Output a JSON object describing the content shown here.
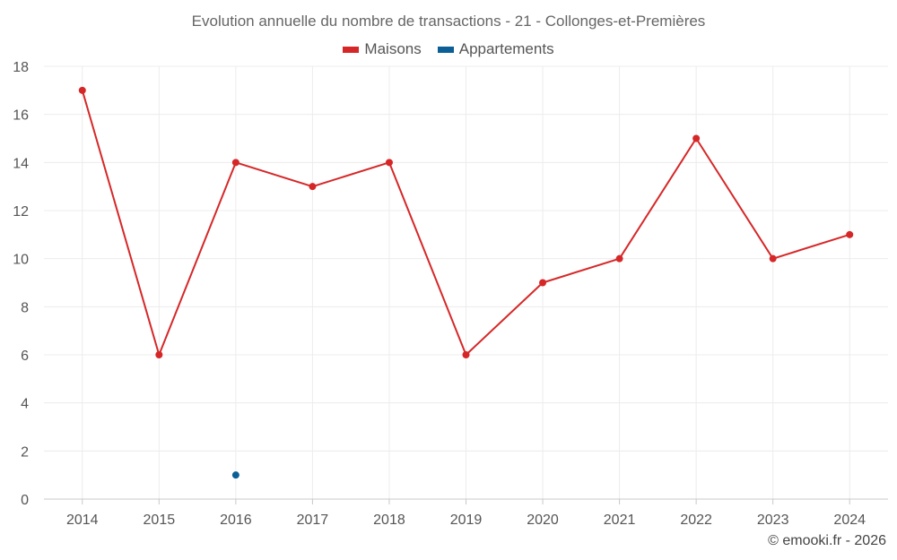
{
  "chart_data": {
    "type": "line",
    "title": "Evolution annuelle du nombre de transactions - 21 - Collonges-et-Premières",
    "categories": [
      "2014",
      "2015",
      "2016",
      "2017",
      "2018",
      "2019",
      "2020",
      "2021",
      "2022",
      "2023",
      "2024"
    ],
    "ylim": [
      0,
      18
    ],
    "yticks": [
      0,
      2,
      4,
      6,
      8,
      10,
      12,
      14,
      16,
      18
    ],
    "grid": true,
    "legend_position": "top-center",
    "series": [
      {
        "name": "Maisons",
        "color": "#d62728",
        "values": [
          17,
          6,
          14,
          13,
          14,
          6,
          9,
          10,
          15,
          10,
          11
        ]
      },
      {
        "name": "Appartements",
        "color": "#0b5e96",
        "values": [
          null,
          null,
          1,
          null,
          null,
          null,
          null,
          null,
          null,
          null,
          null
        ]
      }
    ],
    "credit": "© emooki.fr - 2026"
  }
}
